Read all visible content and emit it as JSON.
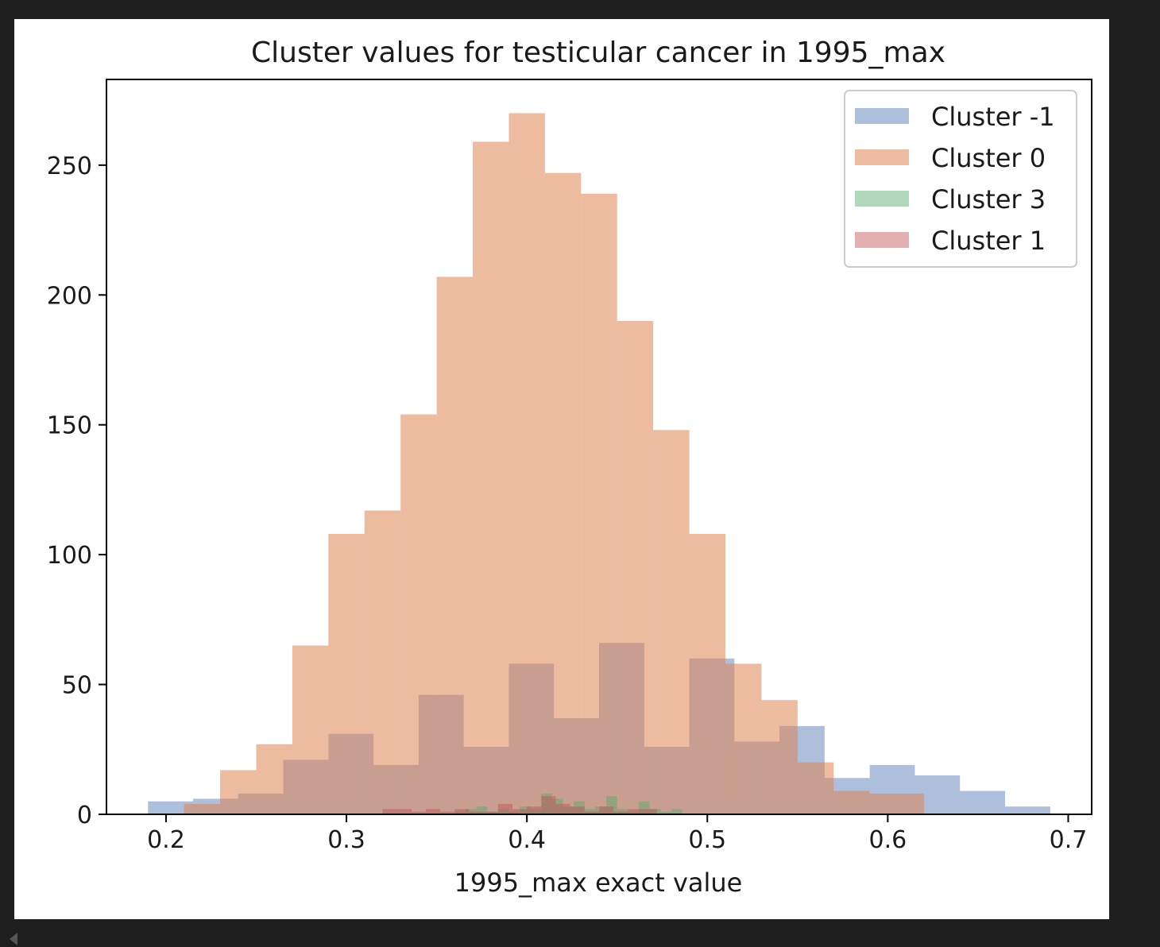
{
  "chart_data": {
    "type": "histogram",
    "title": "Cluster values for testicular cancer in 1995_max",
    "xlabel": "1995_max exact value",
    "ylabel": "",
    "xlim": [
      0.167,
      0.713
    ],
    "ylim": [
      0,
      283
    ],
    "xticks": [
      0.2,
      0.3,
      0.4,
      0.5,
      0.6,
      0.7
    ],
    "xtick_labels": [
      "0.2",
      "0.3",
      "0.4",
      "0.5",
      "0.6",
      "0.7"
    ],
    "yticks": [
      0,
      50,
      100,
      150,
      200,
      250
    ],
    "ytick_labels": [
      "0",
      "50",
      "100",
      "150",
      "200",
      "250"
    ],
    "legend_position": "top-right",
    "grid": false,
    "series": [
      {
        "name": "Cluster -1",
        "color": "#4c72b0",
        "opacity": 0.45,
        "bin_edges": [
          0.19,
          0.215,
          0.24,
          0.265,
          0.29,
          0.315,
          0.34,
          0.365,
          0.39,
          0.415,
          0.44,
          0.465,
          0.49,
          0.515,
          0.54,
          0.565,
          0.59,
          0.615,
          0.64,
          0.665,
          0.69
        ],
        "counts": [
          5,
          6,
          8,
          21,
          31,
          19,
          46,
          26,
          58,
          37,
          66,
          26,
          60,
          28,
          34,
          14,
          19,
          15,
          9,
          3
        ]
      },
      {
        "name": "Cluster 0",
        "color": "#dd8452",
        "opacity": 0.55,
        "bin_edges": [
          0.21,
          0.23,
          0.25,
          0.27,
          0.29,
          0.31,
          0.33,
          0.35,
          0.37,
          0.39,
          0.41,
          0.43,
          0.45,
          0.47,
          0.49,
          0.51,
          0.53,
          0.55,
          0.57,
          0.59,
          0.62
        ],
        "counts": [
          4,
          17,
          27,
          65,
          108,
          117,
          154,
          207,
          259,
          270,
          247,
          239,
          190,
          148,
          108,
          58,
          44,
          20,
          9,
          8
        ]
      },
      {
        "name": "Cluster 3",
        "color": "#55a868",
        "opacity": 0.45,
        "bin_edges": [
          0.36,
          0.366,
          0.372,
          0.378,
          0.384,
          0.39,
          0.396,
          0.402,
          0.408,
          0.414,
          0.42,
          0.426,
          0.432,
          0.438,
          0.444,
          0.45,
          0.456,
          0.462,
          0.468,
          0.474,
          0.48,
          0.486
        ],
        "counts": [
          1,
          2,
          3,
          1,
          2,
          1,
          3,
          2,
          8,
          6,
          3,
          5,
          2,
          3,
          7,
          2,
          1,
          5,
          2,
          1,
          2
        ]
      },
      {
        "name": "Cluster 1",
        "color": "#c44e52",
        "opacity": 0.45,
        "bin_edges": [
          0.32,
          0.328,
          0.336,
          0.344,
          0.352,
          0.36,
          0.368,
          0.376,
          0.384,
          0.392,
          0.4,
          0.408,
          0.416,
          0.424,
          0.432,
          0.44,
          0.448,
          0.456,
          0.464,
          0.472
        ],
        "counts": [
          2,
          2,
          1,
          2,
          1,
          2,
          1,
          1,
          4,
          2,
          3,
          7,
          4,
          3,
          1,
          3,
          1,
          2,
          2
        ]
      }
    ]
  }
}
